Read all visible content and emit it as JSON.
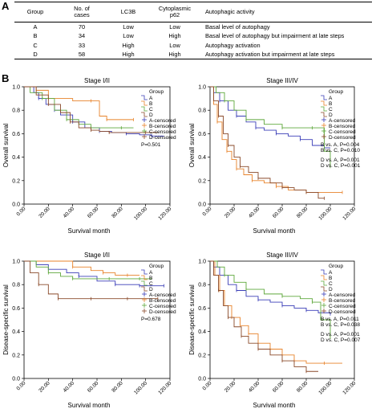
{
  "panel_a_label": "A",
  "panel_b_label": "B",
  "table": {
    "headers": [
      "Group",
      "No. of\ncases",
      "LC3B",
      "Cytoplasmic\np62",
      "Autophagic activity"
    ],
    "rows": [
      [
        "A",
        "70",
        "Low",
        "Low",
        "Basal level of autophagy"
      ],
      [
        "B",
        "34",
        "Low",
        "High",
        "Basal level of autophagy but impairment at late steps"
      ],
      [
        "C",
        "33",
        "High",
        "Low",
        "Autophagy activation"
      ],
      [
        "D",
        "58",
        "High",
        "High",
        "Autophagy activation but impairment at late steps"
      ]
    ]
  },
  "colors": {
    "A": "#3b3fb8",
    "B": "#e8832b",
    "C": "#5fa83c",
    "D": "#8a4a2a"
  },
  "chart_data": [
    {
      "type": "line",
      "title": "Stage I/II",
      "xlabel": "Survival month",
      "ylabel": "Overall survival",
      "xticks": [
        "0.00",
        "20.00",
        "40.00",
        "60.00",
        "80.00",
        "100.00",
        "120.00"
      ],
      "yticks": [
        "0.0",
        "0.2",
        "0.4",
        "0.6",
        "0.8",
        "1.0"
      ],
      "xlim": [
        0,
        120
      ],
      "ylim": [
        0,
        1
      ],
      "legend_title": "Group",
      "legend": [
        "A",
        "B",
        "C",
        "D",
        "A-censored",
        "B-censored",
        "C-censored",
        "D-censored"
      ],
      "stats": [
        "P=0.501"
      ],
      "series": [
        {
          "name": "A",
          "x": [
            0,
            8,
            12,
            18,
            25,
            30,
            40,
            50,
            62,
            72,
            84,
            95,
            105,
            115
          ],
          "y": [
            1.0,
            0.95,
            0.9,
            0.85,
            0.8,
            0.76,
            0.7,
            0.65,
            0.62,
            0.61,
            0.6,
            0.59,
            0.58,
            0.58
          ]
        },
        {
          "name": "B",
          "x": [
            0,
            10,
            20,
            40,
            55,
            62,
            68,
            80,
            90
          ],
          "y": [
            1.0,
            0.97,
            0.9,
            0.88,
            0.88,
            0.75,
            0.72,
            0.72,
            0.72
          ]
        },
        {
          "name": "C",
          "x": [
            0,
            5,
            15,
            25,
            35,
            45,
            55,
            70,
            80,
            90
          ],
          "y": [
            1.0,
            0.95,
            0.9,
            0.8,
            0.72,
            0.68,
            0.65,
            0.65,
            0.65,
            0.65
          ]
        },
        {
          "name": "D",
          "x": [
            0,
            10,
            20,
            30,
            38,
            45,
            55,
            62,
            70,
            80,
            100,
            110
          ],
          "y": [
            1.0,
            0.93,
            0.85,
            0.78,
            0.7,
            0.65,
            0.63,
            0.62,
            0.61,
            0.61,
            0.61,
            0.61
          ]
        }
      ]
    },
    {
      "type": "line",
      "title": "Stage III/IV",
      "xlabel": "Survival month",
      "ylabel": "Overall survival",
      "xticks": [
        "0.00",
        "20.00",
        "40.00",
        "60.00",
        "80.00",
        "100.00",
        "120.00"
      ],
      "yticks": [
        "0.0",
        "0.2",
        "0.4",
        "0.6",
        "0.8",
        "1.0"
      ],
      "xlim": [
        0,
        120
      ],
      "ylim": [
        0,
        1
      ],
      "legend_title": "Group",
      "legend": [
        "A",
        "B",
        "C",
        "D",
        "A-censored",
        "B-censored",
        "C-censored",
        "D-censored"
      ],
      "stats": [
        "B vs. A, P=0.004",
        "B vs. C, P=0.010",
        "D vs. A, P=0.001",
        "D vs. C, P=0.001"
      ],
      "series": [
        {
          "name": "A",
          "x": [
            0,
            3,
            8,
            15,
            22,
            30,
            38,
            45,
            55,
            65,
            75,
            85,
            95,
            100
          ],
          "y": [
            1.0,
            0.95,
            0.88,
            0.8,
            0.75,
            0.7,
            0.65,
            0.63,
            0.6,
            0.58,
            0.55,
            0.5,
            0.48,
            0.48
          ]
        },
        {
          "name": "B",
          "x": [
            0,
            3,
            6,
            10,
            14,
            18,
            22,
            28,
            35,
            45,
            55,
            65,
            80,
            95,
            110
          ],
          "y": [
            1.0,
            0.85,
            0.7,
            0.55,
            0.45,
            0.38,
            0.3,
            0.25,
            0.2,
            0.18,
            0.15,
            0.12,
            0.1,
            0.1,
            0.1
          ]
        },
        {
          "name": "C",
          "x": [
            0,
            5,
            12,
            20,
            30,
            45,
            60,
            75,
            85,
            95,
            100
          ],
          "y": [
            1.0,
            0.95,
            0.88,
            0.8,
            0.72,
            0.68,
            0.65,
            0.65,
            0.65,
            0.45,
            0.32
          ]
        },
        {
          "name": "D",
          "x": [
            0,
            3,
            7,
            11,
            15,
            20,
            25,
            32,
            40,
            50,
            60,
            70,
            80,
            90,
            95
          ],
          "y": [
            1.0,
            0.88,
            0.75,
            0.6,
            0.5,
            0.4,
            0.32,
            0.27,
            0.22,
            0.18,
            0.14,
            0.12,
            0.1,
            0.05,
            0.05
          ]
        }
      ]
    },
    {
      "type": "line",
      "title": "Stage I/II",
      "xlabel": "Survival month",
      "ylabel": "Disease-specific survival",
      "xticks": [
        "0.00",
        "20.00",
        "40.00",
        "60.00",
        "80.00",
        "100.00",
        "120.00"
      ],
      "yticks": [
        "0.0",
        "0.2",
        "0.4",
        "0.6",
        "0.8",
        "1.0"
      ],
      "xlim": [
        0,
        120
      ],
      "ylim": [
        0,
        1
      ],
      "legend_title": "Group",
      "legend": [
        "A",
        "B",
        "C",
        "D",
        "A-censored",
        "B-censored",
        "C-censored",
        "D-censored"
      ],
      "stats": [
        "P=0.678"
      ],
      "series": [
        {
          "name": "A",
          "x": [
            0,
            10,
            20,
            35,
            45,
            60,
            75,
            85,
            95,
            105,
            115
          ],
          "y": [
            1.0,
            0.97,
            0.93,
            0.9,
            0.87,
            0.83,
            0.8,
            0.8,
            0.79,
            0.79,
            0.79
          ]
        },
        {
          "name": "B",
          "x": [
            0,
            20,
            40,
            55,
            65,
            75,
            85,
            95
          ],
          "y": [
            1.0,
            1.0,
            0.95,
            0.92,
            0.9,
            0.88,
            0.88,
            0.88
          ]
        },
        {
          "name": "C",
          "x": [
            0,
            10,
            20,
            30,
            40,
            55,
            70,
            85,
            95,
            105
          ],
          "y": [
            1.0,
            0.95,
            0.9,
            0.87,
            0.85,
            0.85,
            0.85,
            0.85,
            0.85,
            0.85
          ]
        },
        {
          "name": "D",
          "x": [
            0,
            5,
            12,
            20,
            28,
            40,
            55,
            70,
            85,
            100,
            110
          ],
          "y": [
            1.0,
            0.9,
            0.8,
            0.72,
            0.68,
            0.68,
            0.68,
            0.68,
            0.68,
            0.68,
            0.68
          ]
        }
      ]
    },
    {
      "type": "line",
      "title": "Stage III/IV",
      "xlabel": "Survival month",
      "ylabel": "Disease-specific survival",
      "xticks": [
        "0.00",
        "20.00",
        "40.00",
        "60.00",
        "80.00",
        "100.00",
        "120.00"
      ],
      "yticks": [
        "0.0",
        "0.2",
        "0.4",
        "0.6",
        "0.8",
        "1.0"
      ],
      "xlim": [
        0,
        120
      ],
      "ylim": [
        0,
        1
      ],
      "legend_title": "Group",
      "legend": [
        "A",
        "B",
        "C",
        "D",
        "A-censored",
        "B-censored",
        "C-censored",
        "D-censored"
      ],
      "stats": [
        "B vs. A, P=0.011",
        "B vs. C, P=0.038",
        "D vs. A, P=0.001",
        "D vs. C, P=0.007"
      ],
      "series": [
        {
          "name": "A",
          "x": [
            0,
            3,
            8,
            15,
            22,
            30,
            40,
            50,
            60,
            70,
            80,
            90,
            100
          ],
          "y": [
            1.0,
            0.95,
            0.88,
            0.8,
            0.75,
            0.7,
            0.67,
            0.65,
            0.62,
            0.6,
            0.58,
            0.56,
            0.55
          ]
        },
        {
          "name": "B",
          "x": [
            0,
            4,
            8,
            12,
            18,
            25,
            32,
            40,
            50,
            60,
            70,
            80,
            95,
            110
          ],
          "y": [
            1.0,
            0.88,
            0.75,
            0.62,
            0.52,
            0.45,
            0.38,
            0.3,
            0.25,
            0.2,
            0.15,
            0.13,
            0.13,
            0.13
          ]
        },
        {
          "name": "C",
          "x": [
            0,
            6,
            12,
            20,
            30,
            45,
            60,
            75,
            85,
            92,
            100
          ],
          "y": [
            1.0,
            0.95,
            0.88,
            0.82,
            0.76,
            0.72,
            0.7,
            0.68,
            0.65,
            0.5,
            0.35
          ]
        },
        {
          "name": "D",
          "x": [
            0,
            3,
            7,
            11,
            15,
            20,
            26,
            32,
            40,
            50,
            60,
            70,
            80,
            90
          ],
          "y": [
            1.0,
            0.88,
            0.75,
            0.62,
            0.52,
            0.44,
            0.36,
            0.3,
            0.25,
            0.2,
            0.15,
            0.1,
            0.06,
            0.06
          ]
        }
      ]
    }
  ]
}
